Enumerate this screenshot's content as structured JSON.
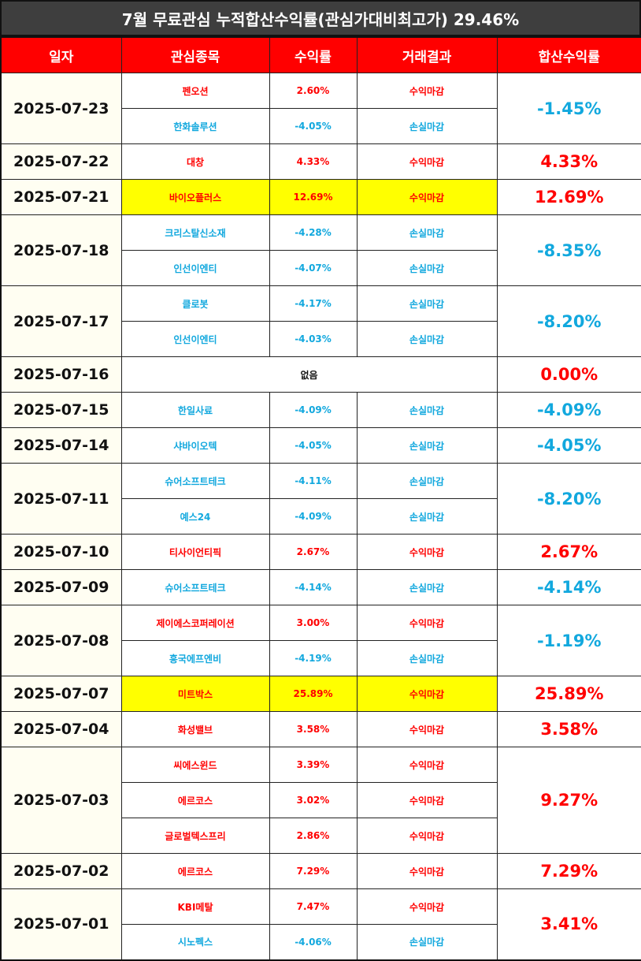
{
  "title": "7월 무료관심 누적합산수익률(관심가대비최고가) 29.46%",
  "headers": [
    "일자",
    "관심종목",
    "수익률",
    "거래결과",
    "합산수익률"
  ],
  "none_label": "없음",
  "colors": {
    "header_bg": "#ff0000",
    "title_bg": "#3e3e3e",
    "positive": "#ff0000",
    "negative": "#12a8de",
    "highlight": "#ffff00",
    "date_bg": "#fffef2"
  },
  "groups": [
    {
      "date": "2025-07-23",
      "total": "-1.45%",
      "total_sign": "neg",
      "items": [
        {
          "stock": "펜오션",
          "ret": "2.60%",
          "result": "수익마감",
          "sign": "pos"
        },
        {
          "stock": "한화솔루션",
          "ret": "-4.05%",
          "result": "손실마감",
          "sign": "neg"
        }
      ]
    },
    {
      "date": "2025-07-22",
      "total": "4.33%",
      "total_sign": "pos",
      "items": [
        {
          "stock": "대창",
          "ret": "4.33%",
          "result": "수익마감",
          "sign": "pos"
        }
      ]
    },
    {
      "date": "2025-07-21",
      "total": "12.69%",
      "total_sign": "pos",
      "items": [
        {
          "stock": "바이오플러스",
          "ret": "12.69%",
          "result": "수익마감",
          "sign": "pos",
          "highlight": true
        }
      ]
    },
    {
      "date": "2025-07-18",
      "total": "-8.35%",
      "total_sign": "neg",
      "items": [
        {
          "stock": "크리스탈신소재",
          "ret": "-4.28%",
          "result": "손실마감",
          "sign": "neg"
        },
        {
          "stock": "인선이엔티",
          "ret": "-4.07%",
          "result": "손실마감",
          "sign": "neg"
        }
      ]
    },
    {
      "date": "2025-07-17",
      "total": "-8.20%",
      "total_sign": "neg",
      "items": [
        {
          "stock": "클로봇",
          "ret": "-4.17%",
          "result": "손실마감",
          "sign": "neg"
        },
        {
          "stock": "인선이엔티",
          "ret": "-4.03%",
          "result": "손실마감",
          "sign": "neg"
        }
      ]
    },
    {
      "date": "2025-07-16",
      "total": "0.00%",
      "total_sign": "zero",
      "items": []
    },
    {
      "date": "2025-07-15",
      "total": "-4.09%",
      "total_sign": "neg",
      "items": [
        {
          "stock": "한일사료",
          "ret": "-4.09%",
          "result": "손실마감",
          "sign": "neg"
        }
      ]
    },
    {
      "date": "2025-07-14",
      "total": "-4.05%",
      "total_sign": "neg",
      "items": [
        {
          "stock": "샤바이오텍",
          "ret": "-4.05%",
          "result": "손실마감",
          "sign": "neg"
        }
      ]
    },
    {
      "date": "2025-07-11",
      "total": "-8.20%",
      "total_sign": "neg",
      "items": [
        {
          "stock": "슈어소프트테크",
          "ret": "-4.11%",
          "result": "손실마감",
          "sign": "neg"
        },
        {
          "stock": "예스24",
          "ret": "-4.09%",
          "result": "손실마감",
          "sign": "neg"
        }
      ]
    },
    {
      "date": "2025-07-10",
      "total": "2.67%",
      "total_sign": "pos",
      "items": [
        {
          "stock": "티사이언티픽",
          "ret": "2.67%",
          "result": "수익마감",
          "sign": "pos"
        }
      ]
    },
    {
      "date": "2025-07-09",
      "total": "-4.14%",
      "total_sign": "neg",
      "items": [
        {
          "stock": "슈어소프트테크",
          "ret": "-4.14%",
          "result": "손실마감",
          "sign": "neg"
        }
      ]
    },
    {
      "date": "2025-07-08",
      "total": "-1.19%",
      "total_sign": "neg",
      "items": [
        {
          "stock": "제이에스코퍼레이션",
          "ret": "3.00%",
          "result": "수익마감",
          "sign": "pos"
        },
        {
          "stock": "흥국에프엔비",
          "ret": "-4.19%",
          "result": "손실마감",
          "sign": "neg"
        }
      ]
    },
    {
      "date": "2025-07-07",
      "total": "25.89%",
      "total_sign": "pos",
      "items": [
        {
          "stock": "미트박스",
          "ret": "25.89%",
          "result": "수익마감",
          "sign": "pos",
          "highlight": true
        }
      ]
    },
    {
      "date": "2025-07-04",
      "total": "3.58%",
      "total_sign": "pos",
      "items": [
        {
          "stock": "화성밸브",
          "ret": "3.58%",
          "result": "수익마감",
          "sign": "pos"
        }
      ]
    },
    {
      "date": "2025-07-03",
      "total": "9.27%",
      "total_sign": "pos",
      "items": [
        {
          "stock": "씨에스윈드",
          "ret": "3.39%",
          "result": "수익마감",
          "sign": "pos"
        },
        {
          "stock": "에르코스",
          "ret": "3.02%",
          "result": "수익마감",
          "sign": "pos"
        },
        {
          "stock": "글로벌텍스프리",
          "ret": "2.86%",
          "result": "수익마감",
          "sign": "pos"
        }
      ]
    },
    {
      "date": "2025-07-02",
      "total": "7.29%",
      "total_sign": "pos",
      "items": [
        {
          "stock": "에르코스",
          "ret": "7.29%",
          "result": "수익마감",
          "sign": "pos"
        }
      ]
    },
    {
      "date": "2025-07-01",
      "total": "3.41%",
      "total_sign": "pos",
      "items": [
        {
          "stock": "KBI메탈",
          "ret": "7.47%",
          "result": "수익마감",
          "sign": "pos"
        },
        {
          "stock": "시노펙스",
          "ret": "-4.06%",
          "result": "손실마감",
          "sign": "neg"
        }
      ]
    }
  ]
}
